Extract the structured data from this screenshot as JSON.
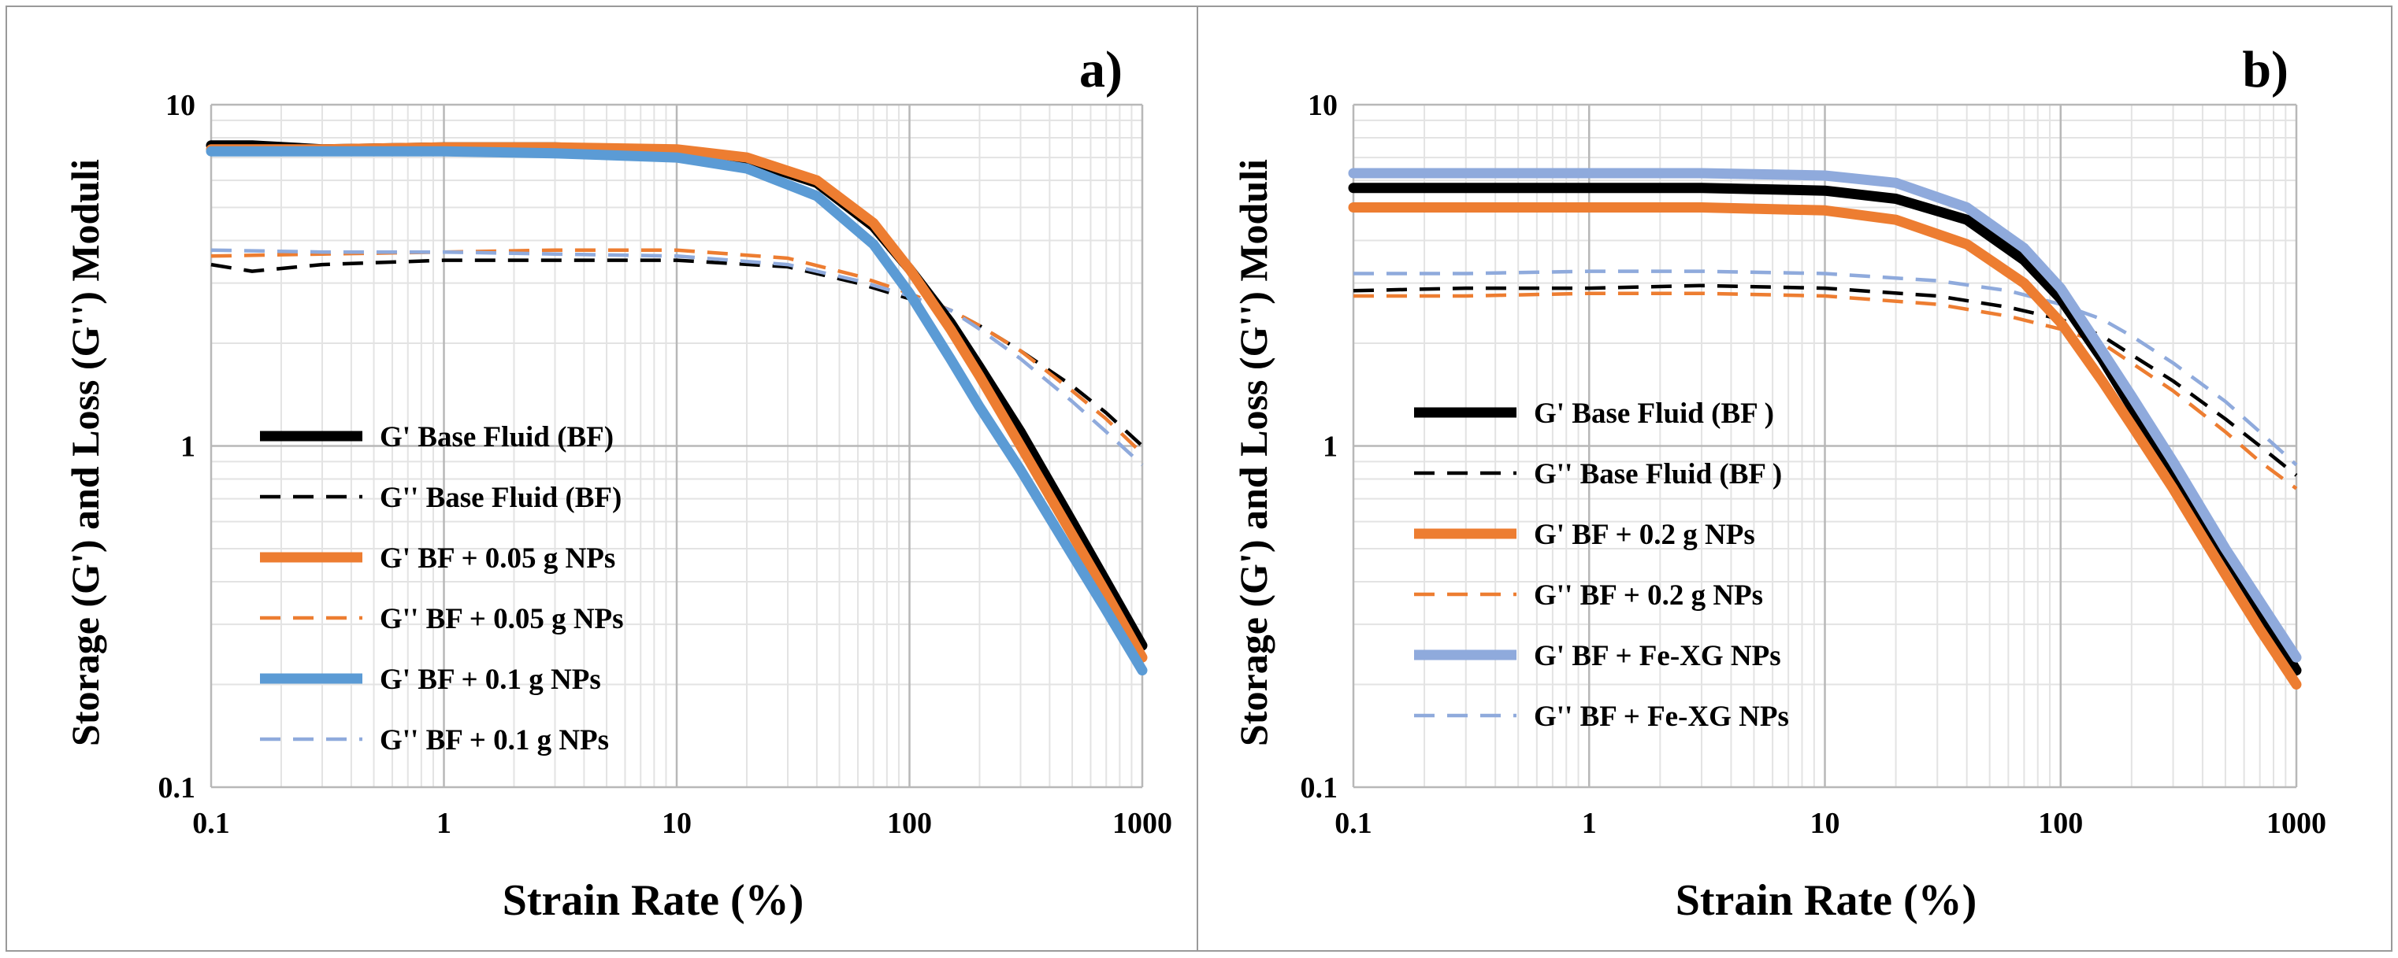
{
  "chart_data": [
    {
      "type": "line",
      "panel_label": "a)",
      "xlabel": "Strain Rate (%)",
      "ylabel": "Storage (G') and Loss (G'') Moduli",
      "xscale": "log",
      "yscale": "log",
      "xlim": [
        0.1,
        1000
      ],
      "ylim": [
        0.1,
        10
      ],
      "x_ticks": [
        "0.1",
        "1",
        "10",
        "100",
        "1000"
      ],
      "y_ticks": [
        "0.1",
        "1",
        "10"
      ],
      "grid": true,
      "legend_position": "center-left",
      "series": [
        {
          "name": "G' Base Fluid (BF)",
          "color": "#000000",
          "style": "solid",
          "x": [
            0.1,
            0.15,
            0.3,
            1,
            3,
            10,
            20,
            40,
            70,
            100,
            150,
            200,
            300,
            500,
            700,
            1000
          ],
          "y": [
            7.6,
            7.6,
            7.4,
            7.5,
            7.5,
            7.3,
            6.9,
            5.9,
            4.4,
            3.3,
            2.3,
            1.7,
            1.1,
            0.6,
            0.4,
            0.26
          ]
        },
        {
          "name": "G'' Base Fluid (BF)",
          "color": "#000000",
          "style": "dashed",
          "x": [
            0.1,
            0.15,
            0.3,
            1,
            3,
            10,
            30,
            60,
            100,
            150,
            200,
            300,
            500,
            700,
            1000
          ],
          "y": [
            3.4,
            3.25,
            3.4,
            3.5,
            3.5,
            3.5,
            3.35,
            3.0,
            2.7,
            2.5,
            2.25,
            1.9,
            1.5,
            1.25,
            1.0
          ]
        },
        {
          "name": "G' BF + 0.05 g NPs",
          "color": "#ED7D31",
          "style": "solid",
          "x": [
            0.1,
            0.3,
            1,
            3,
            10,
            20,
            40,
            70,
            100,
            150,
            200,
            300,
            500,
            700,
            1000
          ],
          "y": [
            7.4,
            7.4,
            7.5,
            7.5,
            7.4,
            7.0,
            6.0,
            4.5,
            3.3,
            2.2,
            1.6,
            1.0,
            0.55,
            0.37,
            0.24
          ]
        },
        {
          "name": "G'' BF + 0.05 g NPs",
          "color": "#ED7D31",
          "style": "dashed",
          "x": [
            0.1,
            0.3,
            1,
            3,
            10,
            30,
            60,
            100,
            150,
            200,
            300,
            500,
            700,
            1000
          ],
          "y": [
            3.6,
            3.65,
            3.7,
            3.75,
            3.75,
            3.55,
            3.15,
            2.8,
            2.5,
            2.25,
            1.9,
            1.45,
            1.2,
            0.95
          ]
        },
        {
          "name": "G' BF + 0.1 g NPs",
          "color": "#5B9BD5",
          "style": "solid",
          "x": [
            0.1,
            0.3,
            1,
            3,
            10,
            20,
            40,
            70,
            100,
            150,
            200,
            300,
            500,
            700,
            1000
          ],
          "y": [
            7.3,
            7.3,
            7.3,
            7.2,
            7.0,
            6.5,
            5.4,
            3.9,
            2.8,
            1.8,
            1.3,
            0.85,
            0.48,
            0.33,
            0.22
          ]
        },
        {
          "name": "G'' BF + 0.1 g NPs",
          "color": "#8FAADC",
          "style": "dashed",
          "x": [
            0.1,
            0.3,
            1,
            3,
            10,
            30,
            60,
            100,
            150,
            200,
            300,
            500,
            700,
            1000
          ],
          "y": [
            3.75,
            3.7,
            3.7,
            3.65,
            3.6,
            3.4,
            3.05,
            2.75,
            2.5,
            2.2,
            1.8,
            1.35,
            1.1,
            0.88
          ]
        }
      ]
    },
    {
      "type": "line",
      "panel_label": "b)",
      "xlabel": "Strain Rate (%)",
      "ylabel": "Storage (G') and Loss (G'') Moduli",
      "xscale": "log",
      "yscale": "log",
      "xlim": [
        0.1,
        1000
      ],
      "ylim": [
        0.1,
        10
      ],
      "x_ticks": [
        "0.1",
        "1",
        "10",
        "100",
        "1000"
      ],
      "y_ticks": [
        "0.1",
        "1",
        "10"
      ],
      "grid": true,
      "legend_position": "center-left",
      "series": [
        {
          "name": "G' Base Fluid (BF )",
          "color": "#000000",
          "style": "solid",
          "x": [
            0.1,
            0.3,
            1,
            3,
            10,
            20,
            40,
            70,
            100,
            150,
            200,
            300,
            500,
            700,
            1000
          ],
          "y": [
            5.7,
            5.7,
            5.7,
            5.7,
            5.6,
            5.3,
            4.6,
            3.5,
            2.7,
            1.8,
            1.3,
            0.85,
            0.48,
            0.33,
            0.22
          ]
        },
        {
          "name": "G''  Base Fluid (BF )",
          "color": "#000000",
          "style": "dashed",
          "x": [
            0.1,
            0.3,
            1,
            3,
            10,
            30,
            60,
            100,
            150,
            200,
            300,
            500,
            700,
            1000
          ],
          "y": [
            2.85,
            2.9,
            2.9,
            2.95,
            2.9,
            2.75,
            2.55,
            2.35,
            2.1,
            1.85,
            1.55,
            1.2,
            1.0,
            0.82
          ]
        },
        {
          "name": "G' BF + 0.2 g NPs",
          "color": "#ED7D31",
          "style": "solid",
          "x": [
            0.1,
            0.3,
            1,
            3,
            10,
            20,
            40,
            70,
            100,
            150,
            200,
            300,
            500,
            700,
            1000
          ],
          "y": [
            5.0,
            5.0,
            5.0,
            5.0,
            4.9,
            4.6,
            3.9,
            3.0,
            2.3,
            1.55,
            1.15,
            0.75,
            0.42,
            0.29,
            0.2
          ]
        },
        {
          "name": "G''  BF + 0.2 g NPs",
          "color": "#ED7D31",
          "style": "dashed",
          "x": [
            0.1,
            0.3,
            1,
            3,
            10,
            30,
            60,
            100,
            150,
            200,
            300,
            500,
            700,
            1000
          ],
          "y": [
            2.75,
            2.75,
            2.8,
            2.8,
            2.75,
            2.6,
            2.4,
            2.2,
            2.0,
            1.75,
            1.45,
            1.1,
            0.9,
            0.75
          ]
        },
        {
          "name": "G' BF + Fe-XG NPs",
          "color": "#8FAADC",
          "style": "solid",
          "x": [
            0.1,
            0.3,
            1,
            3,
            10,
            20,
            40,
            70,
            100,
            150,
            200,
            300,
            500,
            700,
            1000
          ],
          "y": [
            6.3,
            6.3,
            6.3,
            6.3,
            6.2,
            5.9,
            5.0,
            3.8,
            2.9,
            1.9,
            1.4,
            0.9,
            0.5,
            0.35,
            0.24
          ]
        },
        {
          "name": "G''  BF + Fe-XG NPs",
          "color": "#8FAADC",
          "style": "dashed",
          "x": [
            0.1,
            0.3,
            1,
            3,
            10,
            30,
            60,
            100,
            150,
            200,
            300,
            500,
            700,
            1000
          ],
          "y": [
            3.2,
            3.2,
            3.25,
            3.25,
            3.2,
            3.05,
            2.85,
            2.6,
            2.35,
            2.1,
            1.75,
            1.35,
            1.1,
            0.88
          ]
        }
      ]
    }
  ]
}
